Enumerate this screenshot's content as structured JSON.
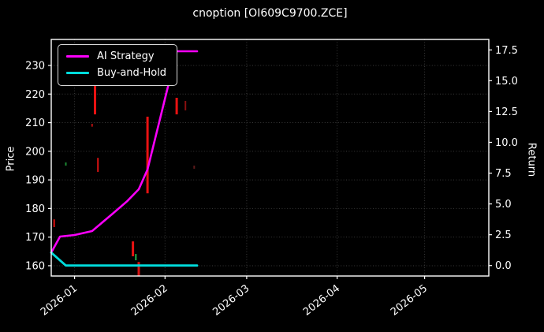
{
  "page": {
    "background": "#000000",
    "text_color": "#ffffff"
  },
  "chart_data": {
    "type": "mixed",
    "title": "cnoption [OI609C9700.ZCE]",
    "grid": true,
    "x_axis": {
      "range": [
        "2025-12-24",
        "2026-05-23"
      ],
      "ticks": [
        {
          "date": "2026-01-01",
          "label": "2026-01"
        },
        {
          "date": "2026-02-01",
          "label": "2026-02"
        },
        {
          "date": "2026-03-01",
          "label": "2026-03"
        },
        {
          "date": "2026-04-01",
          "label": "2026-04"
        },
        {
          "date": "2026-05-01",
          "label": "2026-05"
        }
      ]
    },
    "price_axis": {
      "label": "Price",
      "range": [
        156.4,
        239.1
      ],
      "ticks": [
        "160",
        "170",
        "180",
        "190",
        "200",
        "210",
        "220",
        "230"
      ]
    },
    "return_axis": {
      "label": "Return",
      "range": [
        -0.85,
        18.35
      ],
      "ticks": [
        "0.0",
        "2.5",
        "5.0",
        "7.5",
        "10.0",
        "12.5",
        "15.0",
        "17.5"
      ]
    },
    "legend": {
      "position": "upper-left",
      "items": [
        {
          "label": "AI Strategy",
          "color": "#fb00fb"
        },
        {
          "label": "Buy-and-Hold",
          "color": "#00dcdc"
        }
      ]
    },
    "series": [
      {
        "name": "AI Strategy",
        "type": "line",
        "axis": "return",
        "color": "#fb00fb",
        "width": 2.6,
        "points": [
          [
            "2025-12-24",
            1.05
          ],
          [
            "2025-12-27",
            2.35
          ],
          [
            "2026-01-01",
            2.48
          ],
          [
            "2026-01-07",
            2.8
          ],
          [
            "2026-01-14",
            4.2
          ],
          [
            "2026-01-19",
            5.22
          ],
          [
            "2026-01-23",
            6.19
          ],
          [
            "2026-01-26",
            7.79
          ],
          [
            "2026-02-05",
            17.39
          ],
          [
            "2026-02-12",
            17.39
          ]
        ]
      },
      {
        "name": "Buy-and-Hold",
        "type": "line",
        "axis": "return",
        "color": "#00dcdc",
        "width": 2.8,
        "points": [
          [
            "2025-12-24",
            1.05
          ],
          [
            "2025-12-29",
            0.0
          ],
          [
            "2026-02-12",
            0.0
          ]
        ]
      },
      {
        "name": "option-candles",
        "type": "candlestick",
        "axis": "price",
        "items": [
          {
            "date": "2025-12-25",
            "high": 176.2,
            "low": 173.5,
            "color": "#e01010",
            "w": 2
          },
          {
            "date": "2025-12-29",
            "high": 196.1,
            "low": 195.0,
            "color": "#1d8a33",
            "w": 2
          },
          {
            "date": "2026-01-07",
            "high": 209.6,
            "low": 208.6,
            "color": "#b01010",
            "w": 2
          },
          {
            "date": "2026-01-08",
            "high": 223.9,
            "low": 212.9,
            "color": "#e81212",
            "w": 3
          },
          {
            "date": "2026-01-09",
            "high": 197.7,
            "low": 192.8,
            "color": "#d81212",
            "w": 2
          },
          {
            "date": "2026-01-21",
            "high": 168.5,
            "low": 163.3,
            "color": "#e81212",
            "w": 3
          },
          {
            "date": "2026-01-22",
            "high": 164.1,
            "low": 161.9,
            "color": "#21b14b",
            "w": 2
          },
          {
            "date": "2026-01-23",
            "high": 161.3,
            "low": 156.5,
            "color": "#d81212",
            "w": 3
          },
          {
            "date": "2026-01-26",
            "high": 212.1,
            "low": 185.3,
            "color": "#e81212",
            "w": 3
          },
          {
            "date": "2026-02-05",
            "high": 218.7,
            "low": 212.9,
            "color": "#e81212",
            "w": 3
          },
          {
            "date": "2026-02-08",
            "high": 217.6,
            "low": 214.3,
            "color": "#8a0f0f",
            "w": 2
          },
          {
            "date": "2026-02-11",
            "high": 195.0,
            "low": 193.9,
            "color": "#5c1a1a",
            "w": 2
          }
        ]
      }
    ],
    "style": {
      "grid_color": "#3a3a3a",
      "axis_color": "#ffffff",
      "tick_font_px": 13
    }
  }
}
